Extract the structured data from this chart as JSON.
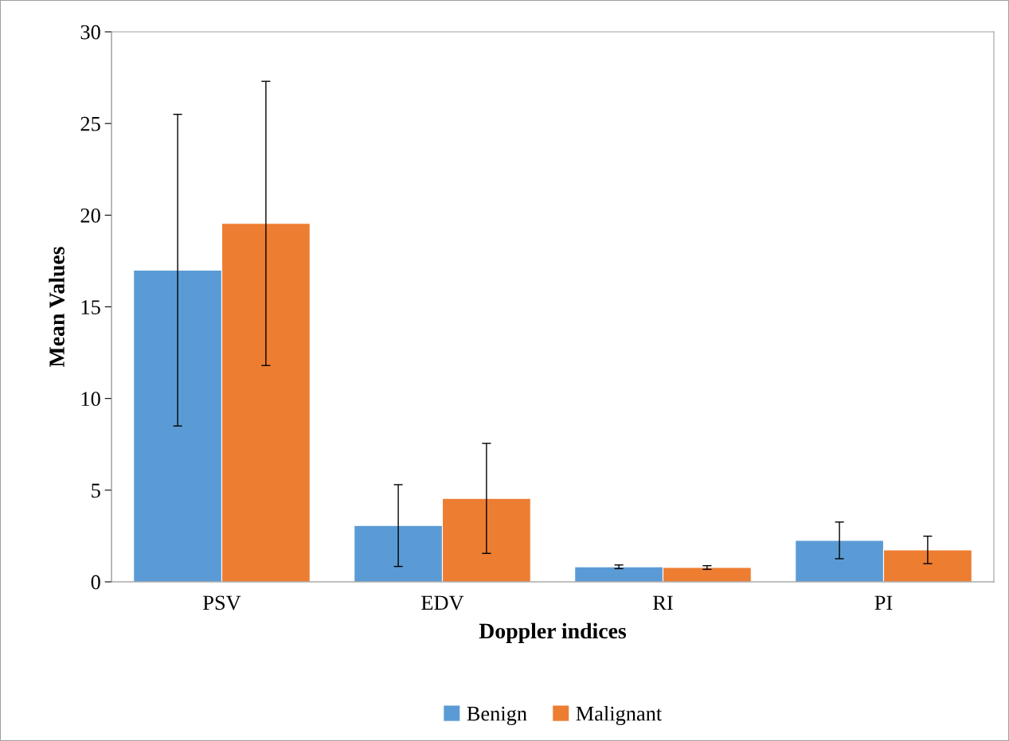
{
  "chart_data": {
    "type": "bar",
    "xlabel": "Doppler indices",
    "ylabel": "Mean Values",
    "categories": [
      "PSV",
      "EDV",
      "RI",
      "PI"
    ],
    "series": [
      {
        "name": "Benign",
        "color": "#5b9bd5",
        "values": [
          17.0,
          3.07,
          0.82,
          2.26
        ],
        "errors": [
          8.5,
          2.23,
          0.1,
          1.0
        ]
      },
      {
        "name": "Malignant",
        "color": "#ed7d31",
        "values": [
          19.55,
          4.55,
          0.78,
          1.74
        ],
        "errors": [
          7.75,
          3.0,
          0.1,
          0.75
        ]
      }
    ],
    "ylim": [
      0,
      30
    ],
    "yticks": [
      0,
      5,
      10,
      15,
      20,
      25,
      30
    ],
    "grid": false,
    "legend": "bottom"
  }
}
